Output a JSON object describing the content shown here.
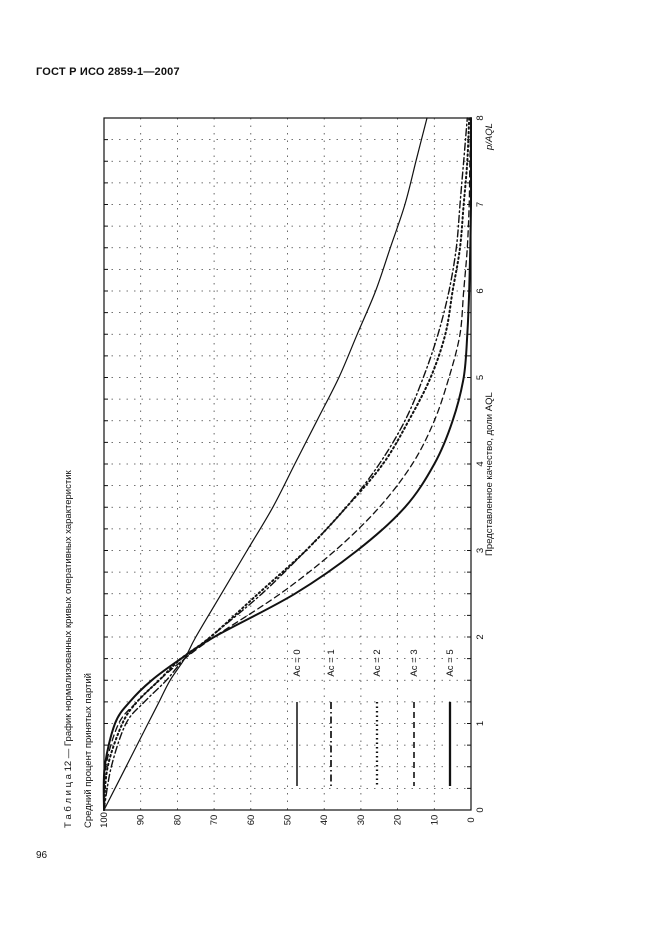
{
  "header": {
    "title": "ГОСТ Р ИСО 2859-1—2007"
  },
  "page": {
    "number": "96"
  },
  "chart_data": {
    "type": "line",
    "title": "Т а б л и ц а  12 — График нормализованных кривых оперативных характеристик",
    "ylabel": "Средний процент принятых партий",
    "xlabel": "Представленное качество, доли AQL",
    "xunit_label": "p/AQL",
    "xlim": [
      0,
      8
    ],
    "ylim": [
      0,
      100
    ],
    "x_ticks": [
      "0",
      "1",
      "2",
      "3",
      "4",
      "5",
      "6",
      "7",
      "8"
    ],
    "y_ticks": [
      "100",
      "90",
      "80",
      "70",
      "60",
      "50",
      "40",
      "30",
      "20",
      "10",
      "0"
    ],
    "grid": true,
    "x": [
      0,
      0.5,
      1,
      1.25,
      1.5,
      1.75,
      2,
      2.5,
      3,
      3.5,
      4,
      4.5,
      5,
      5.5,
      6,
      6.5,
      7,
      7.5,
      8
    ],
    "series": [
      {
        "name": "Ac = 0",
        "style": "solid-thin",
        "values": [
          100,
          94,
          88,
          85,
          82,
          78,
          75,
          68,
          61,
          54,
          48,
          42,
          36,
          31,
          26,
          22,
          18,
          15,
          12
        ]
      },
      {
        "name": "Ac = 1",
        "style": "dash-dot",
        "values": [
          100,
          98,
          94,
          89,
          83,
          78,
          71,
          57,
          45,
          34,
          25,
          18,
          13,
          9,
          6,
          4,
          3,
          2,
          1
        ]
      },
      {
        "name": "Ac = 2",
        "style": "dotted",
        "values": [
          100,
          99,
          95,
          91,
          85,
          79,
          71,
          58,
          45,
          34,
          24,
          17,
          11,
          7,
          5,
          3,
          2,
          1,
          0.5
        ]
      },
      {
        "name": "Ac = 3",
        "style": "dashed",
        "values": [
          100,
          99.5,
          96,
          91,
          85,
          78,
          70,
          52,
          37,
          25,
          16,
          10,
          6,
          3,
          2,
          1,
          0.5,
          0.3,
          0
        ]
      },
      {
        "name": "Ac = 5",
        "style": "solid-thick",
        "values": [
          100,
          99.8,
          97,
          93,
          87,
          79,
          70,
          48,
          31,
          18,
          10,
          5,
          2,
          1,
          0.5,
          0.2,
          0,
          0,
          0
        ]
      }
    ]
  }
}
